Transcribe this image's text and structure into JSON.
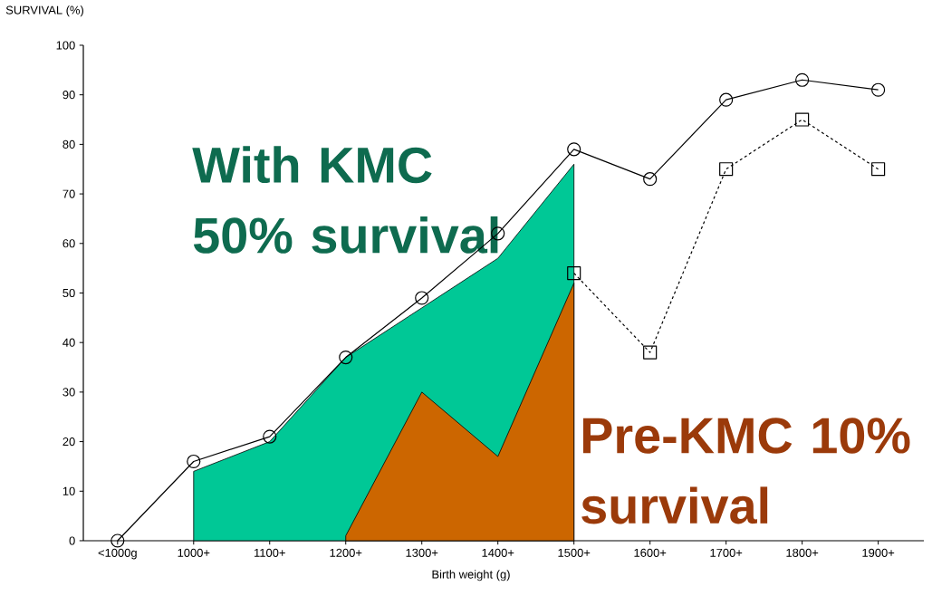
{
  "chart_data": {
    "type": "line",
    "ylabel": "SURVIVAL (%)",
    "xlabel": "Birth weight (g)",
    "categories": [
      "<1000g",
      "1000+",
      "1100+",
      "1200+",
      "1300+",
      "1400+",
      "1500+",
      "1600+",
      "1700+",
      "1800+",
      "1900+"
    ],
    "series": [
      {
        "type": "area",
        "color": "#00c896",
        "values": [
          null,
          14,
          20,
          37,
          47,
          57,
          76,
          null,
          null,
          null,
          null
        ]
      },
      {
        "type": "area",
        "color": "#cc6600",
        "values": [
          null,
          null,
          null,
          1,
          30,
          17,
          52,
          null,
          null,
          null,
          null
        ]
      },
      {
        "color": "#000000",
        "marker": "circle",
        "line_style": "solid",
        "values": [
          0,
          16,
          21,
          37,
          49,
          62,
          79,
          73,
          89,
          93,
          91
        ]
      },
      {
        "color": "#000000",
        "marker": "square",
        "line_style": "dashed",
        "values": [
          null,
          null,
          null,
          null,
          null,
          null,
          54,
          38,
          75,
          85,
          75
        ]
      }
    ],
    "ylim": [
      0,
      100
    ],
    "yticks": [
      0,
      10,
      20,
      30,
      40,
      50,
      60,
      70,
      80,
      90,
      100
    ],
    "annotations": [
      "With KMC 50% survival",
      "Pre-KMC 10% survival"
    ],
    "grid": false
  }
}
